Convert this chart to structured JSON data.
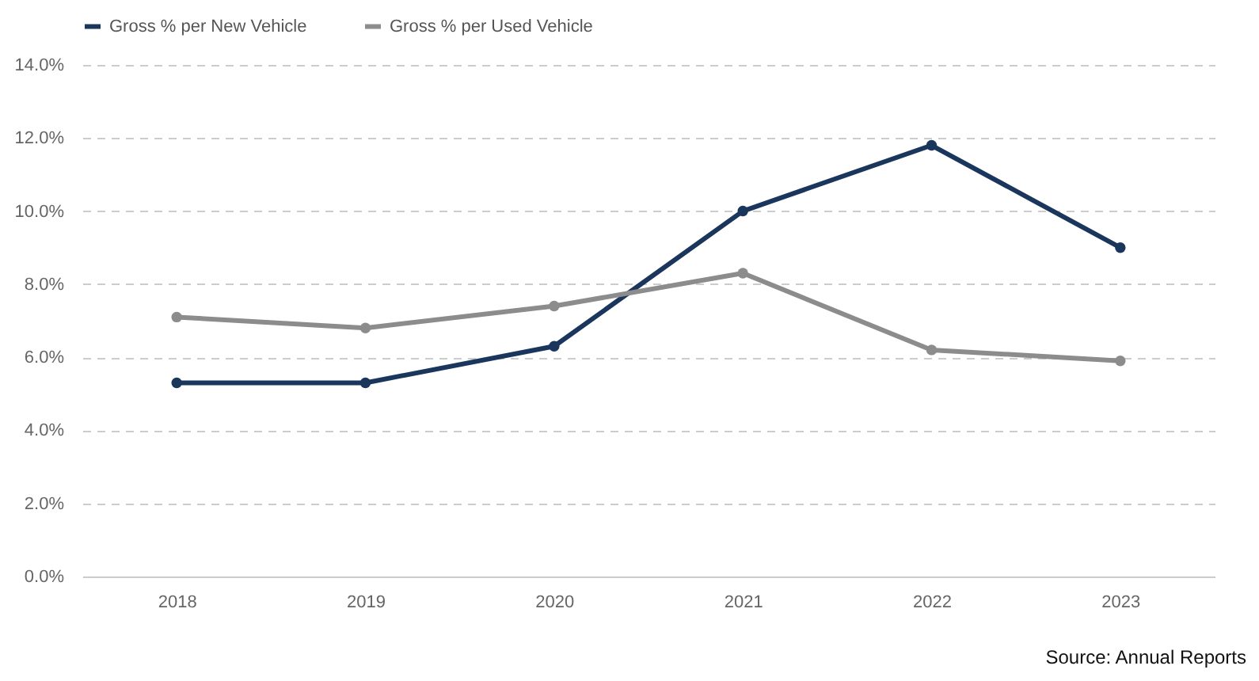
{
  "chart_data": {
    "type": "line",
    "categories": [
      "2018",
      "2019",
      "2020",
      "2021",
      "2022",
      "2023"
    ],
    "series": [
      {
        "name": "Gross % per New Vehicle",
        "color": "#1b365d",
        "values": [
          5.3,
          5.3,
          6.3,
          10.0,
          11.8,
          9.0
        ]
      },
      {
        "name": "Gross % per Used Vehicle",
        "color": "#8c8c8c",
        "values": [
          7.1,
          6.8,
          7.4,
          8.3,
          6.2,
          5.9
        ]
      }
    ],
    "ylim": [
      0,
      14
    ],
    "yticks": [
      {
        "value": 0,
        "label": "0.0%"
      },
      {
        "value": 2,
        "label": "2.0%"
      },
      {
        "value": 4,
        "label": "4.0%"
      },
      {
        "value": 6,
        "label": "6.0%"
      },
      {
        "value": 8,
        "label": "8.0%"
      },
      {
        "value": 10,
        "label": "10.0%"
      },
      {
        "value": 12,
        "label": "12.0%"
      },
      {
        "value": 14,
        "label": "14.0%"
      }
    ],
    "grid": "y",
    "legend": "top",
    "marker": "circle",
    "line_style": "solid",
    "annotations": [
      "Source: Annual Reports"
    ]
  }
}
